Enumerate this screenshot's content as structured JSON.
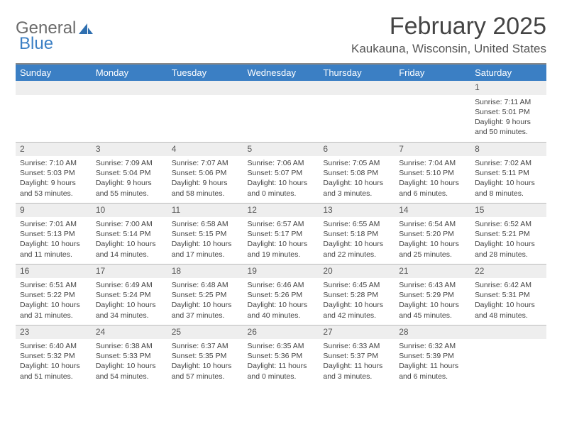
{
  "logo": {
    "word1": "General",
    "word2": "Blue"
  },
  "title": "February 2025",
  "subtitle": "Kaukauna, Wisconsin, United States",
  "colors": {
    "header_bg": "#3b7fc4",
    "header_text": "#ffffff",
    "daynum_bg": "#eeeeee",
    "border": "#bbbbbb",
    "text": "#444444",
    "logo_gray": "#6b6b6b",
    "logo_blue": "#3b7fc4"
  },
  "columns": [
    "Sunday",
    "Monday",
    "Tuesday",
    "Wednesday",
    "Thursday",
    "Friday",
    "Saturday"
  ],
  "weeks": [
    [
      null,
      null,
      null,
      null,
      null,
      null,
      {
        "n": "1",
        "sr": "Sunrise: 7:11 AM",
        "ss": "Sunset: 5:01 PM",
        "dl": "Daylight: 9 hours and 50 minutes."
      }
    ],
    [
      {
        "n": "2",
        "sr": "Sunrise: 7:10 AM",
        "ss": "Sunset: 5:03 PM",
        "dl": "Daylight: 9 hours and 53 minutes."
      },
      {
        "n": "3",
        "sr": "Sunrise: 7:09 AM",
        "ss": "Sunset: 5:04 PM",
        "dl": "Daylight: 9 hours and 55 minutes."
      },
      {
        "n": "4",
        "sr": "Sunrise: 7:07 AM",
        "ss": "Sunset: 5:06 PM",
        "dl": "Daylight: 9 hours and 58 minutes."
      },
      {
        "n": "5",
        "sr": "Sunrise: 7:06 AM",
        "ss": "Sunset: 5:07 PM",
        "dl": "Daylight: 10 hours and 0 minutes."
      },
      {
        "n": "6",
        "sr": "Sunrise: 7:05 AM",
        "ss": "Sunset: 5:08 PM",
        "dl": "Daylight: 10 hours and 3 minutes."
      },
      {
        "n": "7",
        "sr": "Sunrise: 7:04 AM",
        "ss": "Sunset: 5:10 PM",
        "dl": "Daylight: 10 hours and 6 minutes."
      },
      {
        "n": "8",
        "sr": "Sunrise: 7:02 AM",
        "ss": "Sunset: 5:11 PM",
        "dl": "Daylight: 10 hours and 8 minutes."
      }
    ],
    [
      {
        "n": "9",
        "sr": "Sunrise: 7:01 AM",
        "ss": "Sunset: 5:13 PM",
        "dl": "Daylight: 10 hours and 11 minutes."
      },
      {
        "n": "10",
        "sr": "Sunrise: 7:00 AM",
        "ss": "Sunset: 5:14 PM",
        "dl": "Daylight: 10 hours and 14 minutes."
      },
      {
        "n": "11",
        "sr": "Sunrise: 6:58 AM",
        "ss": "Sunset: 5:15 PM",
        "dl": "Daylight: 10 hours and 17 minutes."
      },
      {
        "n": "12",
        "sr": "Sunrise: 6:57 AM",
        "ss": "Sunset: 5:17 PM",
        "dl": "Daylight: 10 hours and 19 minutes."
      },
      {
        "n": "13",
        "sr": "Sunrise: 6:55 AM",
        "ss": "Sunset: 5:18 PM",
        "dl": "Daylight: 10 hours and 22 minutes."
      },
      {
        "n": "14",
        "sr": "Sunrise: 6:54 AM",
        "ss": "Sunset: 5:20 PM",
        "dl": "Daylight: 10 hours and 25 minutes."
      },
      {
        "n": "15",
        "sr": "Sunrise: 6:52 AM",
        "ss": "Sunset: 5:21 PM",
        "dl": "Daylight: 10 hours and 28 minutes."
      }
    ],
    [
      {
        "n": "16",
        "sr": "Sunrise: 6:51 AM",
        "ss": "Sunset: 5:22 PM",
        "dl": "Daylight: 10 hours and 31 minutes."
      },
      {
        "n": "17",
        "sr": "Sunrise: 6:49 AM",
        "ss": "Sunset: 5:24 PM",
        "dl": "Daylight: 10 hours and 34 minutes."
      },
      {
        "n": "18",
        "sr": "Sunrise: 6:48 AM",
        "ss": "Sunset: 5:25 PM",
        "dl": "Daylight: 10 hours and 37 minutes."
      },
      {
        "n": "19",
        "sr": "Sunrise: 6:46 AM",
        "ss": "Sunset: 5:26 PM",
        "dl": "Daylight: 10 hours and 40 minutes."
      },
      {
        "n": "20",
        "sr": "Sunrise: 6:45 AM",
        "ss": "Sunset: 5:28 PM",
        "dl": "Daylight: 10 hours and 42 minutes."
      },
      {
        "n": "21",
        "sr": "Sunrise: 6:43 AM",
        "ss": "Sunset: 5:29 PM",
        "dl": "Daylight: 10 hours and 45 minutes."
      },
      {
        "n": "22",
        "sr": "Sunrise: 6:42 AM",
        "ss": "Sunset: 5:31 PM",
        "dl": "Daylight: 10 hours and 48 minutes."
      }
    ],
    [
      {
        "n": "23",
        "sr": "Sunrise: 6:40 AM",
        "ss": "Sunset: 5:32 PM",
        "dl": "Daylight: 10 hours and 51 minutes."
      },
      {
        "n": "24",
        "sr": "Sunrise: 6:38 AM",
        "ss": "Sunset: 5:33 PM",
        "dl": "Daylight: 10 hours and 54 minutes."
      },
      {
        "n": "25",
        "sr": "Sunrise: 6:37 AM",
        "ss": "Sunset: 5:35 PM",
        "dl": "Daylight: 10 hours and 57 minutes."
      },
      {
        "n": "26",
        "sr": "Sunrise: 6:35 AM",
        "ss": "Sunset: 5:36 PM",
        "dl": "Daylight: 11 hours and 0 minutes."
      },
      {
        "n": "27",
        "sr": "Sunrise: 6:33 AM",
        "ss": "Sunset: 5:37 PM",
        "dl": "Daylight: 11 hours and 3 minutes."
      },
      {
        "n": "28",
        "sr": "Sunrise: 6:32 AM",
        "ss": "Sunset: 5:39 PM",
        "dl": "Daylight: 11 hours and 6 minutes."
      },
      null
    ]
  ]
}
